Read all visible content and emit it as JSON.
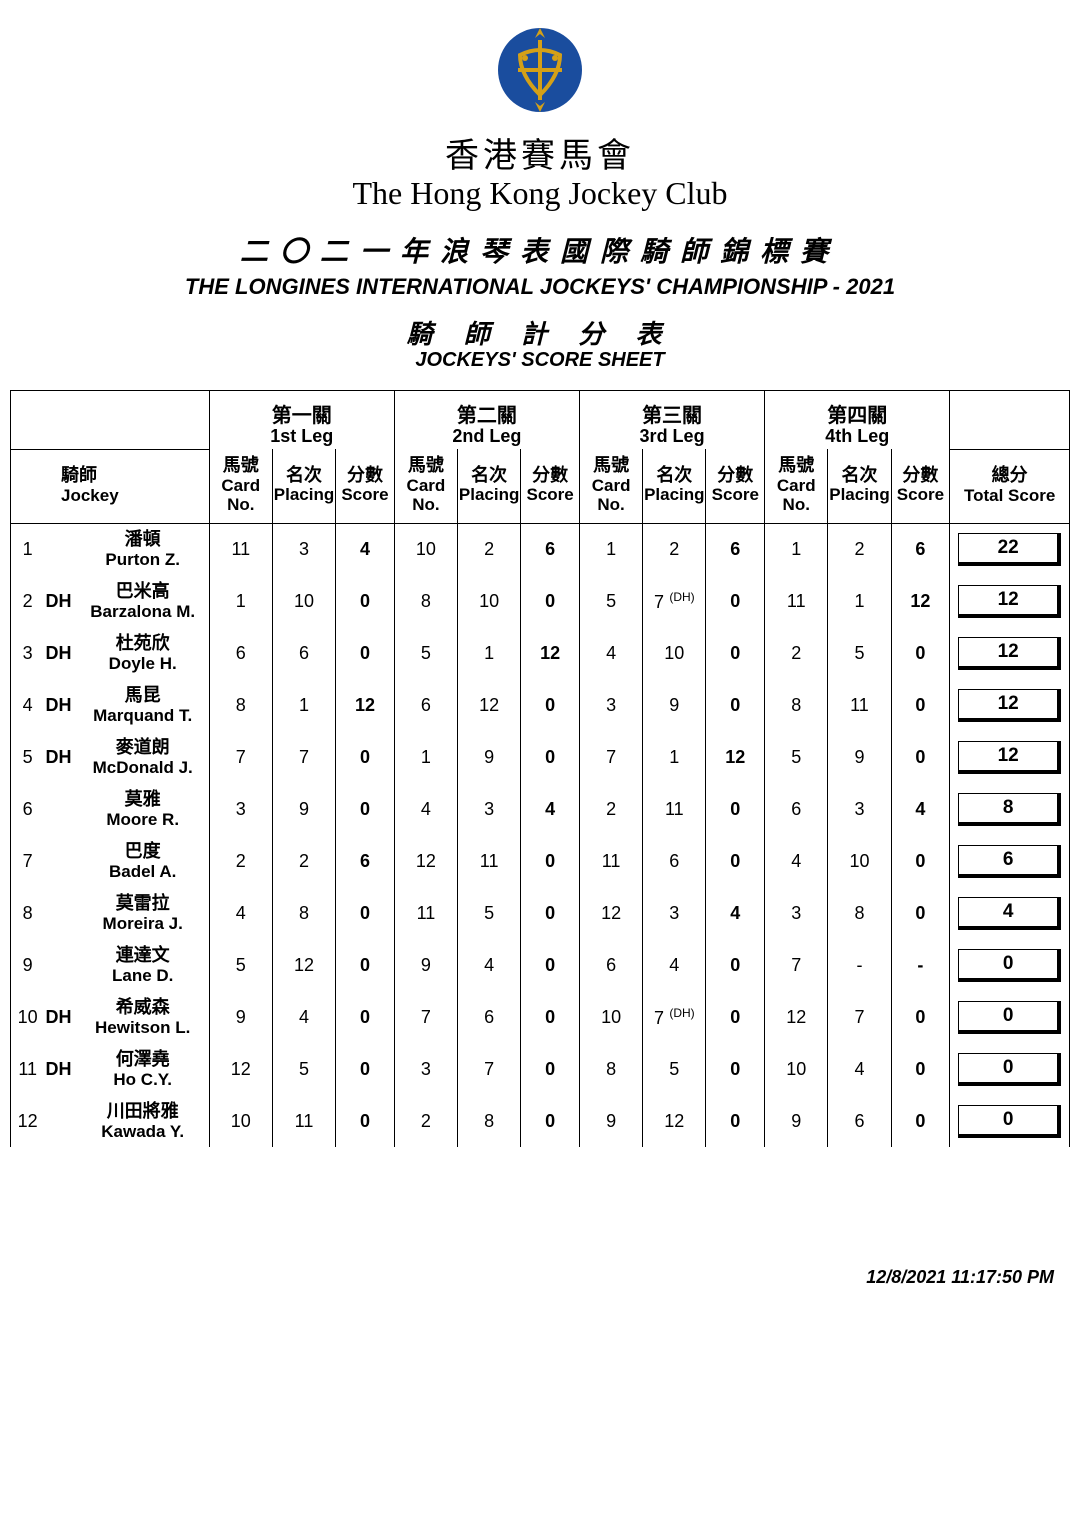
{
  "header": {
    "club_zh": "香港賽馬會",
    "club_en": "The Hong Kong Jockey Club",
    "event_zh": "二〇二一年浪琴表國際騎師錦標賽",
    "event_en": "THE LONGINES INTERNATIONAL JOCKEYS' CHAMPIONSHIP - 2021",
    "sheet_zh": "騎 師 計 分 表",
    "sheet_en": "JOCKEYS' SCORE SHEET",
    "logo_bg": "#1a4d9e",
    "logo_accent": "#d4a017"
  },
  "columns": {
    "jockey_zh": "騎師",
    "jockey_en": "Jockey",
    "card_zh": "馬號",
    "card_en": "Card No.",
    "placing_zh": "名次",
    "placing_en": "Placing",
    "score_zh": "分數",
    "score_en": "Score",
    "total_zh": "總分",
    "total_en": "Total Score"
  },
  "legs": [
    {
      "zh": "第一關",
      "en": "1st Leg"
    },
    {
      "zh": "第二關",
      "en": "2nd Leg"
    },
    {
      "zh": "第三關",
      "en": "3rd Leg"
    },
    {
      "zh": "第四關",
      "en": "4th Leg"
    }
  ],
  "rows": [
    {
      "rank": "1",
      "dh": "",
      "name_zh": "潘頓",
      "name_en": "Purton Z.",
      "legs": [
        {
          "card": "11",
          "placing": "3",
          "score": "4"
        },
        {
          "card": "10",
          "placing": "2",
          "score": "6"
        },
        {
          "card": "1",
          "placing": "2",
          "score": "6"
        },
        {
          "card": "1",
          "placing": "2",
          "score": "6"
        }
      ],
      "total": "22"
    },
    {
      "rank": "2",
      "dh": "DH",
      "name_zh": "巴米高",
      "name_en": "Barzalona M.",
      "legs": [
        {
          "card": "1",
          "placing": "10",
          "score": "0"
        },
        {
          "card": "8",
          "placing": "10",
          "score": "0"
        },
        {
          "card": "5",
          "placing": "7",
          "placing_suffix": "(DH)",
          "score": "0"
        },
        {
          "card": "11",
          "placing": "1",
          "score": "12"
        }
      ],
      "total": "12"
    },
    {
      "rank": "3",
      "dh": "DH",
      "name_zh": "杜苑欣",
      "name_en": "Doyle H.",
      "legs": [
        {
          "card": "6",
          "placing": "6",
          "score": "0"
        },
        {
          "card": "5",
          "placing": "1",
          "score": "12"
        },
        {
          "card": "4",
          "placing": "10",
          "score": "0"
        },
        {
          "card": "2",
          "placing": "5",
          "score": "0"
        }
      ],
      "total": "12"
    },
    {
      "rank": "4",
      "dh": "DH",
      "name_zh": "馬昆",
      "name_en": "Marquand T.",
      "legs": [
        {
          "card": "8",
          "placing": "1",
          "score": "12"
        },
        {
          "card": "6",
          "placing": "12",
          "score": "0"
        },
        {
          "card": "3",
          "placing": "9",
          "score": "0"
        },
        {
          "card": "8",
          "placing": "11",
          "score": "0"
        }
      ],
      "total": "12"
    },
    {
      "rank": "5",
      "dh": "DH",
      "name_zh": "麥道朗",
      "name_en": "McDonald J.",
      "legs": [
        {
          "card": "7",
          "placing": "7",
          "score": "0"
        },
        {
          "card": "1",
          "placing": "9",
          "score": "0"
        },
        {
          "card": "7",
          "placing": "1",
          "score": "12"
        },
        {
          "card": "5",
          "placing": "9",
          "score": "0"
        }
      ],
      "total": "12"
    },
    {
      "rank": "6",
      "dh": "",
      "name_zh": "莫雅",
      "name_en": "Moore R.",
      "legs": [
        {
          "card": "3",
          "placing": "9",
          "score": "0"
        },
        {
          "card": "4",
          "placing": "3",
          "score": "4"
        },
        {
          "card": "2",
          "placing": "11",
          "score": "0"
        },
        {
          "card": "6",
          "placing": "3",
          "score": "4"
        }
      ],
      "total": "8"
    },
    {
      "rank": "7",
      "dh": "",
      "name_zh": "巴度",
      "name_en": "Badel A.",
      "legs": [
        {
          "card": "2",
          "placing": "2",
          "score": "6"
        },
        {
          "card": "12",
          "placing": "11",
          "score": "0"
        },
        {
          "card": "11",
          "placing": "6",
          "score": "0"
        },
        {
          "card": "4",
          "placing": "10",
          "score": "0"
        }
      ],
      "total": "6"
    },
    {
      "rank": "8",
      "dh": "",
      "name_zh": "莫雷拉",
      "name_en": "Moreira J.",
      "legs": [
        {
          "card": "4",
          "placing": "8",
          "score": "0"
        },
        {
          "card": "11",
          "placing": "5",
          "score": "0"
        },
        {
          "card": "12",
          "placing": "3",
          "score": "4"
        },
        {
          "card": "3",
          "placing": "8",
          "score": "0"
        }
      ],
      "total": "4"
    },
    {
      "rank": "9",
      "dh": "",
      "name_zh": "連達文",
      "name_en": "Lane D.",
      "legs": [
        {
          "card": "5",
          "placing": "12",
          "score": "0"
        },
        {
          "card": "9",
          "placing": "4",
          "score": "0"
        },
        {
          "card": "6",
          "placing": "4",
          "score": "0"
        },
        {
          "card": "7",
          "placing": "-",
          "score": "-"
        }
      ],
      "total": "0"
    },
    {
      "rank": "10",
      "dh": "DH",
      "name_zh": "希威森",
      "name_en": "Hewitson L.",
      "legs": [
        {
          "card": "9",
          "placing": "4",
          "score": "0"
        },
        {
          "card": "7",
          "placing": "6",
          "score": "0"
        },
        {
          "card": "10",
          "placing": "7",
          "placing_suffix": "(DH)",
          "score": "0"
        },
        {
          "card": "12",
          "placing": "7",
          "score": "0"
        }
      ],
      "total": "0"
    },
    {
      "rank": "11",
      "dh": "DH",
      "name_zh": "何澤堯",
      "name_en": "Ho C.Y.",
      "legs": [
        {
          "card": "12",
          "placing": "5",
          "score": "0"
        },
        {
          "card": "3",
          "placing": "7",
          "score": "0"
        },
        {
          "card": "8",
          "placing": "5",
          "score": "0"
        },
        {
          "card": "10",
          "placing": "4",
          "score": "0"
        }
      ],
      "total": "0"
    },
    {
      "rank": "12",
      "dh": "",
      "name_zh": "川田將雅",
      "name_en": "Kawada Y.",
      "legs": [
        {
          "card": "10",
          "placing": "11",
          "score": "0"
        },
        {
          "card": "2",
          "placing": "8",
          "score": "0"
        },
        {
          "card": "9",
          "placing": "12",
          "score": "0"
        },
        {
          "card": "9",
          "placing": "6",
          "score": "0"
        }
      ],
      "total": "0"
    }
  ],
  "timestamp": "12/8/2021 11:17:50 PM"
}
